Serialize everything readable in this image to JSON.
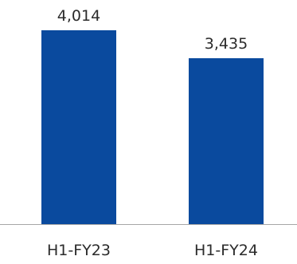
{
  "chart_data": {
    "type": "bar",
    "categories": [
      "H1-FY23",
      "H1-FY24"
    ],
    "values": [
      4014,
      3435
    ],
    "data_labels": [
      "4,014",
      "3,435"
    ],
    "title": "",
    "xlabel": "",
    "ylabel": "",
    "ylim": [
      0,
      4640
    ],
    "grid": false,
    "legend": "none",
    "colors": {
      "bar": "#0a4a9e",
      "axis": "#a6a6a6",
      "text": "#2b2b2b"
    }
  }
}
